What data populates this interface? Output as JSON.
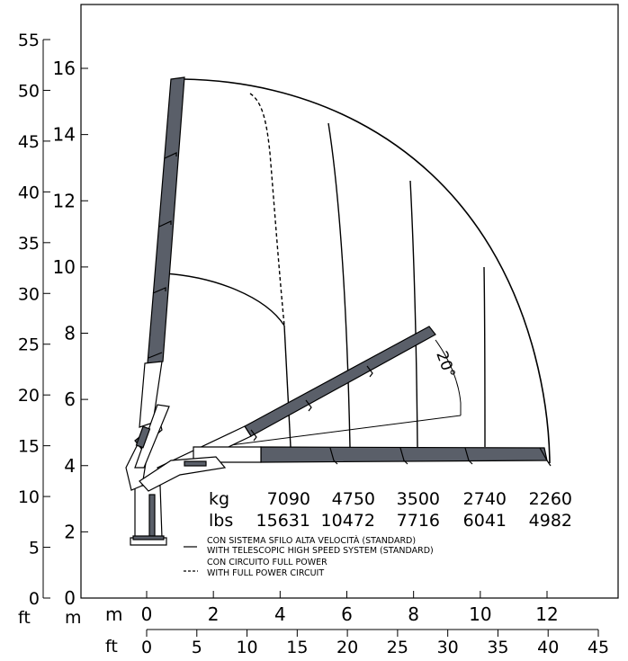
{
  "axes": {
    "left_ft_ticks": [
      "0",
      "5",
      "10",
      "15",
      "20",
      "25",
      "30",
      "35",
      "40",
      "45",
      "50",
      "55"
    ],
    "left_m_ticks": [
      "0",
      "2",
      "4",
      "6",
      "8",
      "10",
      "12",
      "14",
      "16"
    ],
    "left_ft_unit": "ft",
    "left_m_unit": "m",
    "bottom_m_ticks": [
      "0",
      "2",
      "4",
      "6",
      "8",
      "10",
      "12"
    ],
    "bottom_ft_ticks": [
      "0",
      "5",
      "10",
      "15",
      "20",
      "25",
      "30",
      "35",
      "40",
      "45"
    ],
    "bottom_m_unit": "m",
    "bottom_ft_unit": "ft"
  },
  "load_table": {
    "kg_label": "kg",
    "lbs_label": "lbs",
    "kg": [
      "7090",
      "4750",
      "3500",
      "2740",
      "2260"
    ],
    "lbs": [
      "15631",
      "10472",
      "7716",
      "6041",
      "4982"
    ]
  },
  "legend": {
    "solid_line_1": "CON SISTEMA SFILO ALTA VELOCITÀ (STANDARD)",
    "solid_line_2": "WITH TELESCOPIC HIGH SPEED SYSTEM (STANDARD)",
    "dashed_line_1": "CON CIRCUITO FULL POWER",
    "dashed_line_2": "WITH FULL POWER CIRCUIT"
  },
  "annotation": {
    "angle": "20°"
  },
  "colors": {
    "boom": "#5a5f69",
    "line": "#000000",
    "background": "#ffffff"
  },
  "chart_data": {
    "type": "load-chart diagram",
    "x_axis_m_range": [
      0,
      12
    ],
    "y_axis_m_range": [
      0,
      16
    ],
    "load_curves": [
      {
        "kg": 7090,
        "lbs": 15631
      },
      {
        "kg": 4750,
        "lbs": 10472
      },
      {
        "kg": 3500,
        "lbs": 7716
      },
      {
        "kg": 2740,
        "lbs": 6041
      },
      {
        "kg": 2260,
        "lbs": 4982
      }
    ]
  }
}
